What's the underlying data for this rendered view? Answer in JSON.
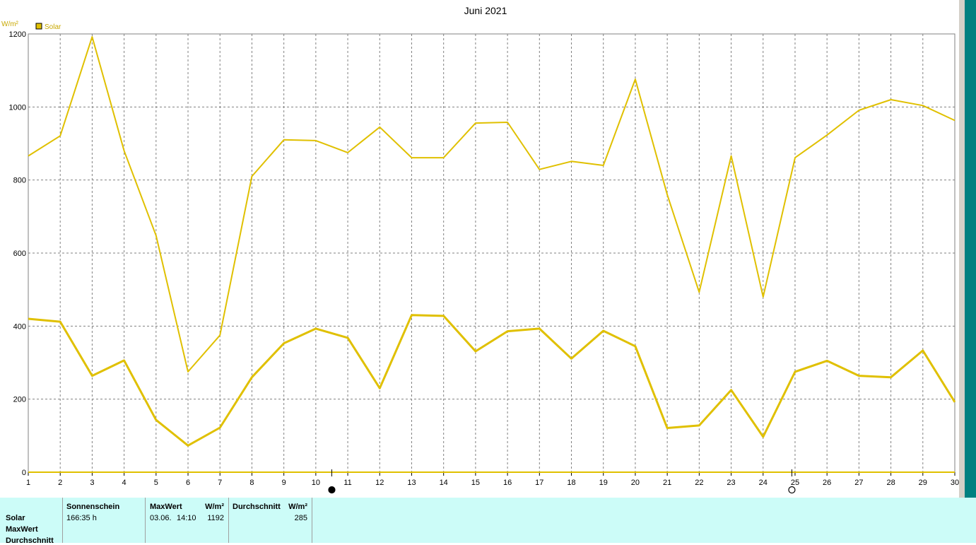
{
  "chart_data": {
    "type": "line",
    "title": "Juni 2021",
    "ylabel": "W/m²",
    "ylim": [
      0,
      1200
    ],
    "yticks": [
      0,
      200,
      400,
      600,
      800,
      1000,
      1200
    ],
    "x": [
      1,
      2,
      3,
      4,
      5,
      6,
      7,
      8,
      9,
      10,
      11,
      12,
      13,
      14,
      15,
      16,
      17,
      18,
      19,
      20,
      21,
      22,
      23,
      24,
      25,
      26,
      27,
      28,
      29,
      30
    ],
    "xticks": [
      "1",
      "2",
      "3",
      "4",
      "5",
      "6",
      "7",
      "8",
      "9",
      "10",
      "11",
      "12",
      "13",
      "14",
      "15",
      "16",
      "17",
      "18",
      "19",
      "20",
      "21",
      "22",
      "23",
      "24",
      "25",
      "26",
      "27",
      "28",
      "29",
      "30"
    ],
    "grid": true,
    "legend": {
      "position": "top-left",
      "entries": [
        "Solar"
      ]
    },
    "series": [
      {
        "name": "Solar",
        "role": "max",
        "color": "#e0c000",
        "values": [
          866,
          921,
          1192,
          880,
          648,
          275,
          375,
          810,
          910,
          908,
          875,
          945,
          861,
          861,
          956,
          958,
          829,
          851,
          840,
          1076,
          760,
          493,
          866,
          480,
          861,
          923,
          991,
          1020,
          1004,
          963
        ]
      },
      {
        "name": "Solar",
        "role": "average",
        "color": "#e0c000",
        "values": [
          420,
          412,
          264,
          306,
          143,
          73,
          122,
          260,
          353,
          393,
          368,
          230,
          430,
          428,
          331,
          386,
          393,
          311,
          387,
          345,
          121,
          128,
          225,
          97,
          275,
          305,
          264,
          260,
          333,
          192
        ]
      }
    ],
    "moon_markers": [
      {
        "x": 10.5,
        "phase": "new-moon"
      },
      {
        "x": 24.9,
        "phase": "full-moon"
      }
    ]
  },
  "summary": {
    "rows": [
      "Solar",
      "MaxWert",
      "Durchschnitt"
    ],
    "sunshine": {
      "header": "Sonnenschein",
      "value": "166:35 h"
    },
    "max": {
      "header": "MaxWert",
      "unit": "W/m²",
      "date": "03.06.",
      "time": "14:10",
      "value": "1192"
    },
    "avg": {
      "header": "Durchschnitt",
      "unit": "W/m²",
      "value": "285"
    }
  },
  "colors": {
    "line": "#e0c000",
    "axis": "#e0c000",
    "panel": "#ccfcf8",
    "strip": "#008080"
  }
}
